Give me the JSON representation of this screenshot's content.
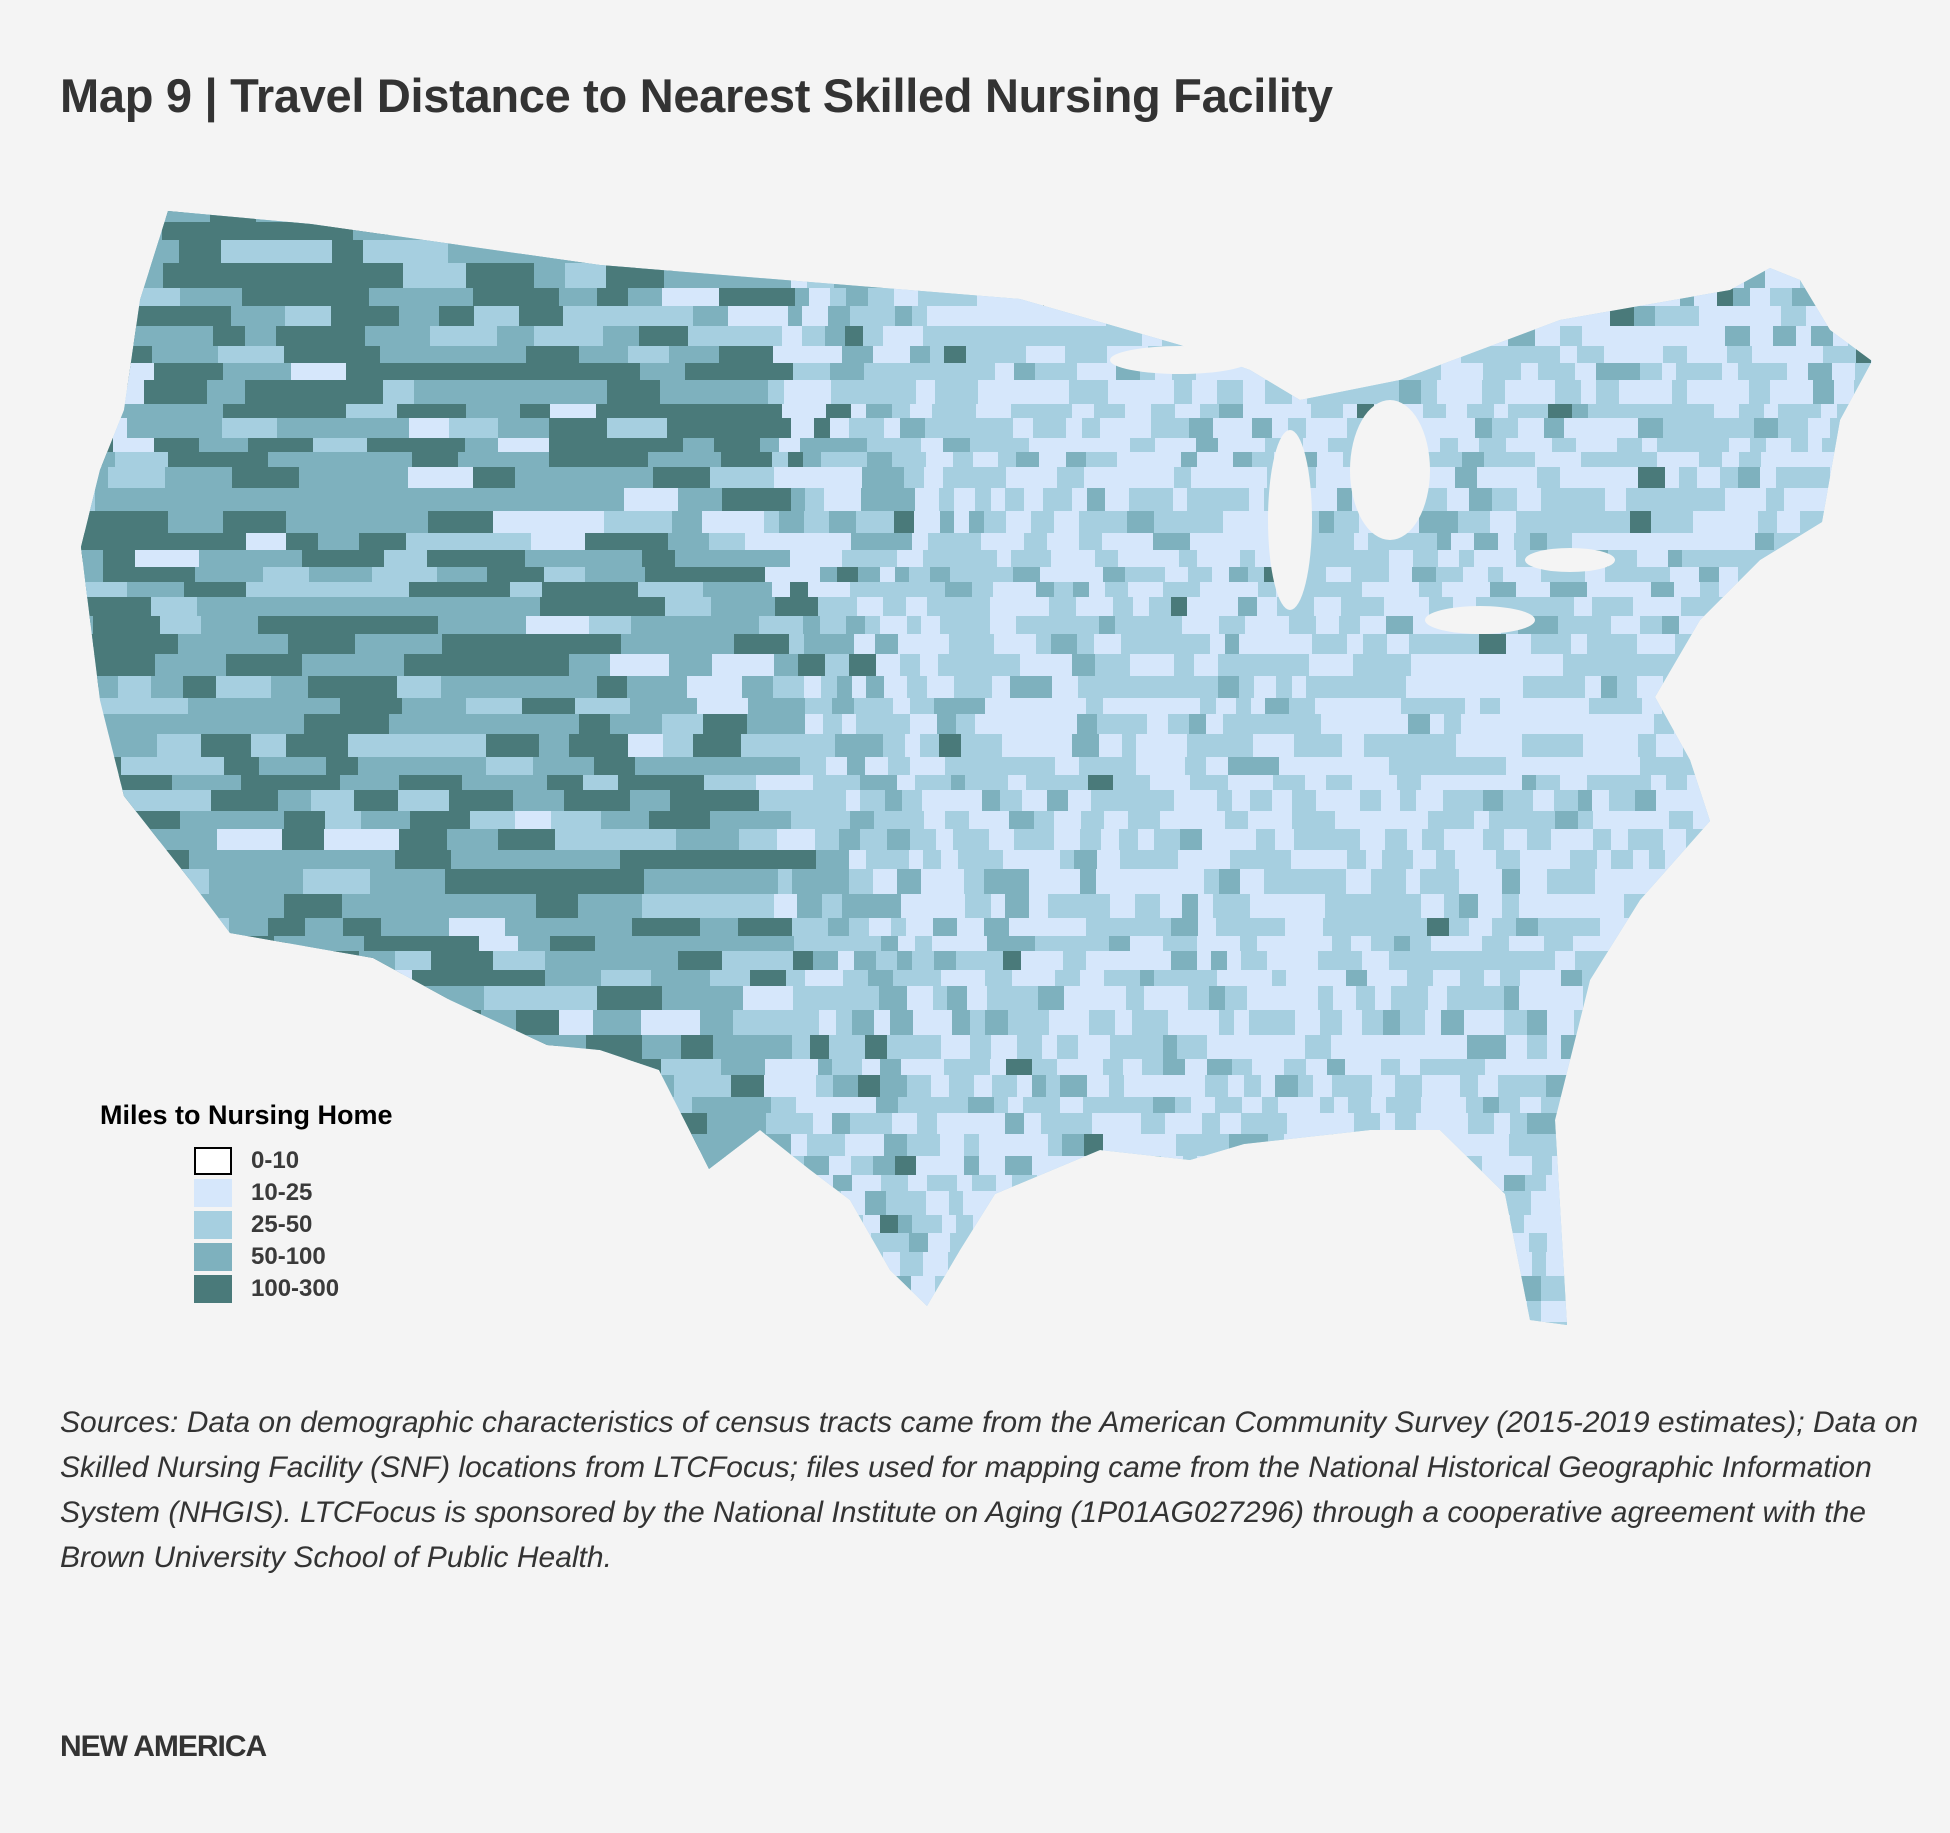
{
  "title": "Map 9  |  Travel Distance to Nearest Skilled Nursing Facility",
  "legend": {
    "title": "Miles to Nursing Home",
    "items": [
      {
        "label": "0-10",
        "color": "#ffffff"
      },
      {
        "label": "10-25",
        "color": "#d6e7fb"
      },
      {
        "label": "25-50",
        "color": "#a6cfe0"
      },
      {
        "label": "50-100",
        "color": "#7eb1be"
      },
      {
        "label": "100-300",
        "color": "#4a7a7a"
      }
    ]
  },
  "sources": "Sources: Data on demographic characteristics of census tracts came from the American Community Survey (2015-2019 estimates); Data on Skilled Nursing Facility (SNF) locations from LTCFocus; files used for mapping came from the National Historical Geographic Information System (NHGIS). LTCFocus is sponsored by the National Institute on Aging (1P01AG027296) through a cooperative agreement with the Brown University School of Public Health.",
  "brand": "NEW AMERICA"
}
